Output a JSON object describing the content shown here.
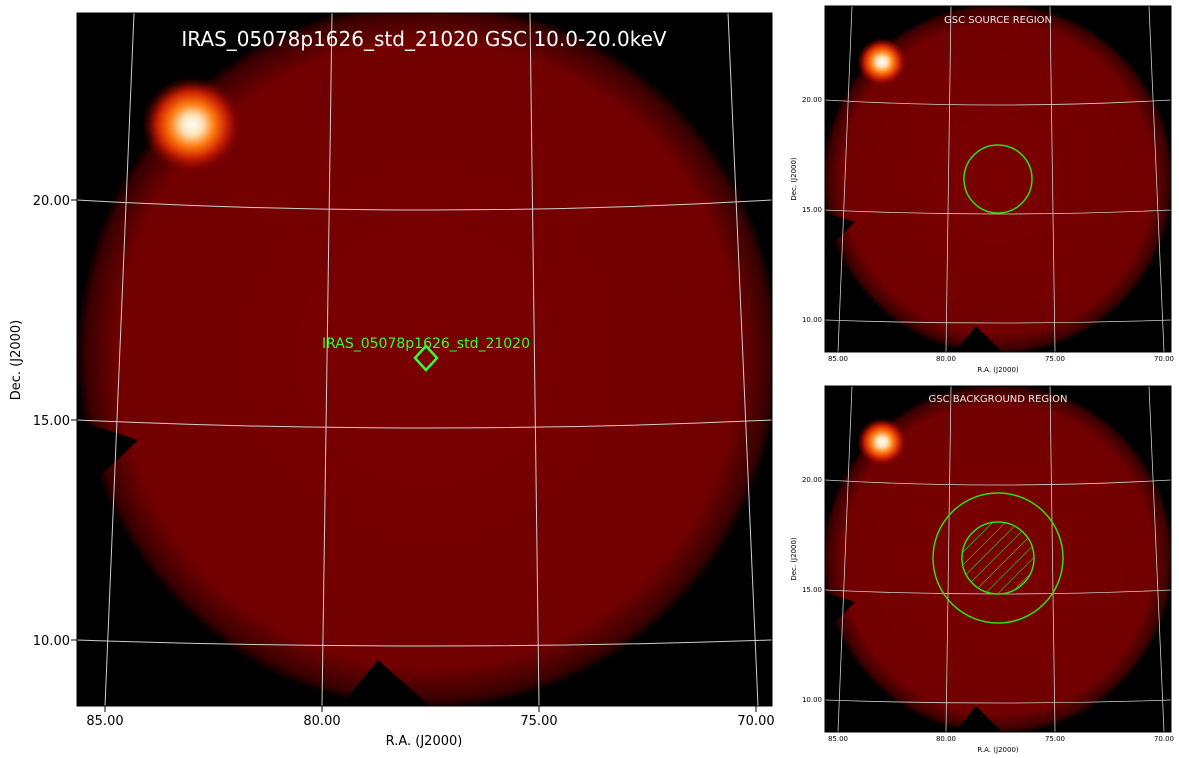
{
  "main_panel": {
    "title": "IRAS_05078p1626_std_21020 GSC 10.0-20.0keV",
    "xlabel": "R.A. (J2000)",
    "ylabel": "Dec. (J2000)",
    "ra_ticks": [
      "85.00",
      "80.00",
      "75.00",
      "70.00"
    ],
    "dec_ticks": [
      "20.00",
      "15.00",
      "10.00"
    ],
    "source_label": "IRAS_05078p1626_std_21020"
  },
  "source_panel": {
    "title": "GSC SOURCE REGION",
    "xlabel": "R.A. (J2000)",
    "ylabel": "Dec. (J2000)",
    "ra_ticks": [
      "85.00",
      "80.00",
      "75.00",
      "70.00"
    ],
    "dec_ticks": [
      "20.00",
      "15.00",
      "10.00"
    ]
  },
  "background_panel": {
    "title": "GSC BACKGROUND REGION",
    "xlabel": "R.A. (J2000)",
    "ylabel": "Dec. (J2000)",
    "ra_ticks": [
      "85.00",
      "80.00",
      "75.00",
      "70.00"
    ],
    "dec_ticks": [
      "20.00",
      "15.00",
      "10.00"
    ]
  },
  "colors": {
    "field": "#7a0000",
    "background": "#000000",
    "region": "#33dd11",
    "grid": "#cfcfcf"
  }
}
